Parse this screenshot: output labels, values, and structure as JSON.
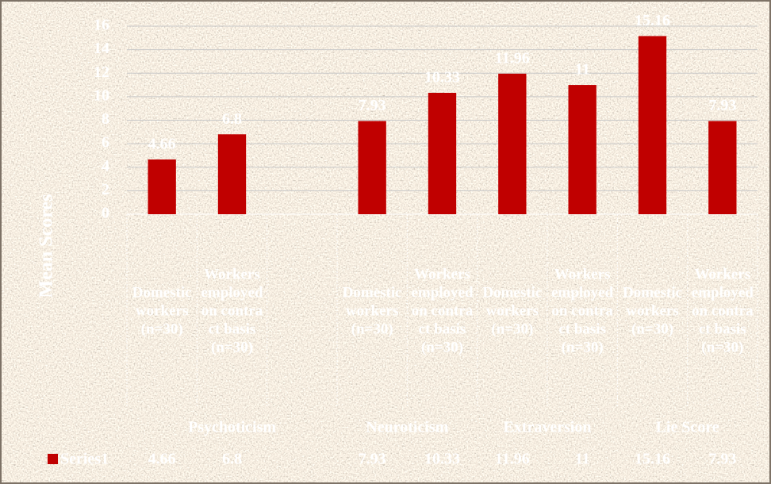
{
  "chart_data": {
    "type": "bar",
    "y_label": "Mean Scores",
    "groups": [
      {
        "name": "Psychoticism",
        "categories": [
          "Domestic workers (n=30)",
          "Workers employed on contract basis (n=30)",
          null
        ]
      },
      {
        "name": "Neuroticism",
        "categories": [
          "Domestic workers (n=30)",
          "Workers employed on contract basis (n=30)"
        ]
      },
      {
        "name": "Extraversion",
        "categories": [
          "Domestic workers (n=30)",
          "Workers employed on contract basis (n=30)"
        ]
      },
      {
        "name": "Lie Score",
        "categories": [
          "Domestic workers (n=30)",
          "Workers employed on contract basis (n=30)"
        ]
      }
    ],
    "series": [
      {
        "name": "Series1",
        "color": "#c00000",
        "values": [
          4.66,
          6.8,
          null,
          7.93,
          10.33,
          11.96,
          11,
          15.16,
          7.93
        ]
      }
    ],
    "ylim": [
      0,
      16
    ],
    "yticks": [
      0,
      2,
      4,
      6,
      8,
      10,
      12,
      14,
      16
    ],
    "grid": true
  }
}
